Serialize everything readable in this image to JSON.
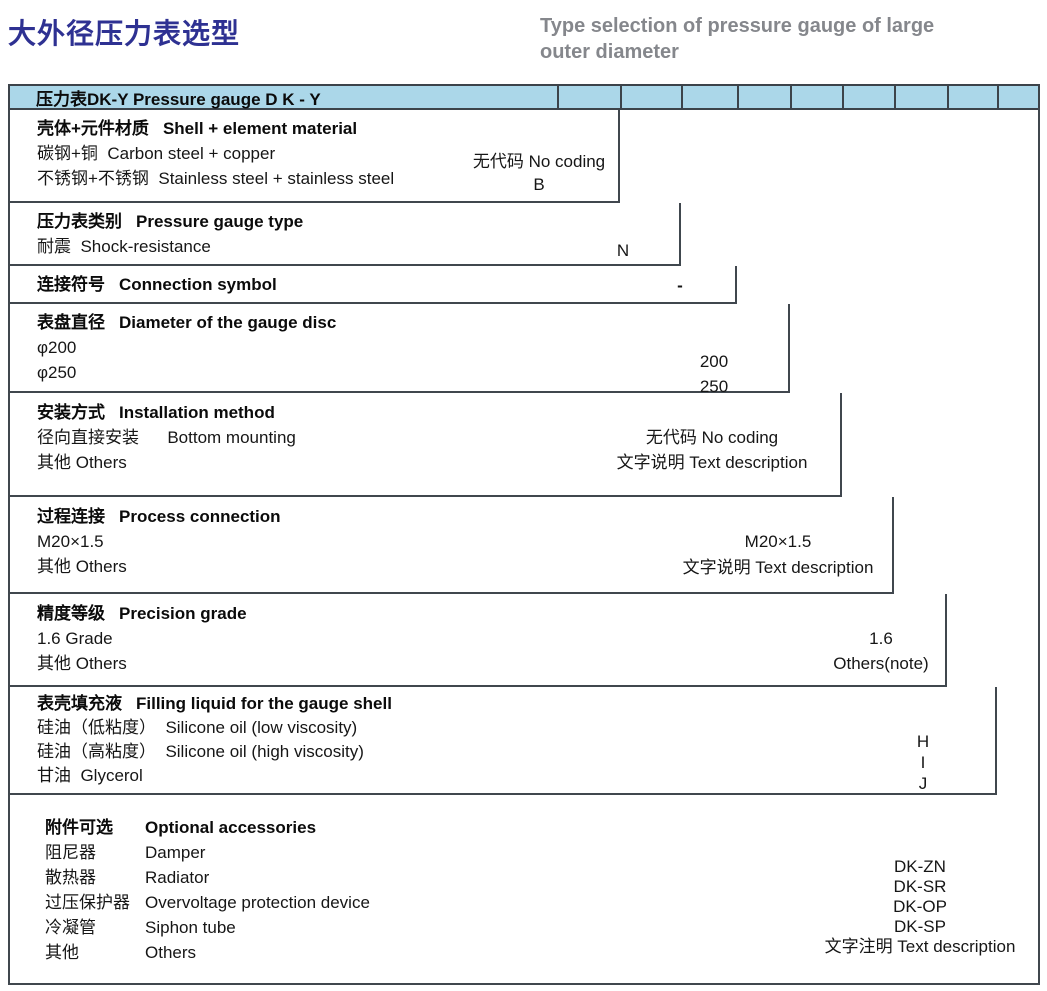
{
  "page": {
    "title_cn": "大外径压力表选型",
    "subtitle_en_line1": "Type selection of pressure gauge of large",
    "subtitle_en_line2": "outer diameter"
  },
  "colors": {
    "title_blue": "#2e3192",
    "subtitle_gray": "#85878c",
    "header_bg": "#abd7e9",
    "border": "#40474e"
  },
  "table": {
    "header": "压力表DK-Y Pressure gauge D K - Y",
    "rows": [
      {
        "title_cn": "壳体+元件材质",
        "title_en": "Shell + element material",
        "items": [
          "碳钢+铜  Carbon steel + copper",
          "不锈钢+不锈钢  Stainless steel + stainless steel"
        ],
        "codes": [
          "无代码 No coding",
          "B"
        ]
      },
      {
        "title_cn": "压力表类别",
        "title_en": "Pressure gauge type",
        "items": [
          "耐震  Shock-resistance"
        ],
        "codes": [
          "N"
        ]
      },
      {
        "title_cn": "连接符号",
        "title_en": "Connection symbol",
        "items": [],
        "codes": [
          "-"
        ]
      },
      {
        "title_cn": "表盘直径",
        "title_en": "Diameter of the gauge disc",
        "items": [
          "φ200",
          "φ250"
        ],
        "codes": [
          "200",
          "250"
        ]
      },
      {
        "title_cn": "安装方式",
        "title_en": "Installation method",
        "items": [
          "径向直接安装      Bottom mounting",
          "其他 Others"
        ],
        "codes": [
          "无代码  No coding",
          "文字说明  Text description"
        ]
      },
      {
        "title_cn": "过程连接",
        "title_en": "Process connection",
        "items": [
          "M20×1.5",
          "其他 Others"
        ],
        "codes": [
          "M20×1.5",
          "文字说明 Text description"
        ]
      },
      {
        "title_cn": "精度等级",
        "title_en": "Precision grade",
        "items": [
          "1.6 Grade",
          "其他 Others"
        ],
        "codes": [
          "1.6",
          "Others(note)"
        ]
      },
      {
        "title_cn": "表壳填充液",
        "title_en": "Filling liquid for the gauge shell",
        "items": [
          "硅油（低粘度）  Silicone oil (low viscosity)",
          "硅油（高粘度）  Silicone oil (high viscosity)",
          "甘油  Glycerol"
        ],
        "codes": [
          "H",
          "I",
          "J"
        ]
      },
      {
        "title_cn": "附件可选",
        "title_en": "Optional accessories",
        "items_pairs": [
          {
            "cn": "阻尼器",
            "en": "Damper"
          },
          {
            "cn": "散热器",
            "en": "Radiator"
          },
          {
            "cn": "过压保护器",
            "en": "Overvoltage protection device"
          },
          {
            "cn": "冷凝管",
            "en": "Siphon tube"
          },
          {
            "cn": "其他",
            "en": "Others"
          }
        ],
        "codes": [
          "DK-ZN",
          "DK-SR",
          "DK-OP",
          "DK-SP",
          "文字注明 Text description"
        ]
      }
    ]
  }
}
